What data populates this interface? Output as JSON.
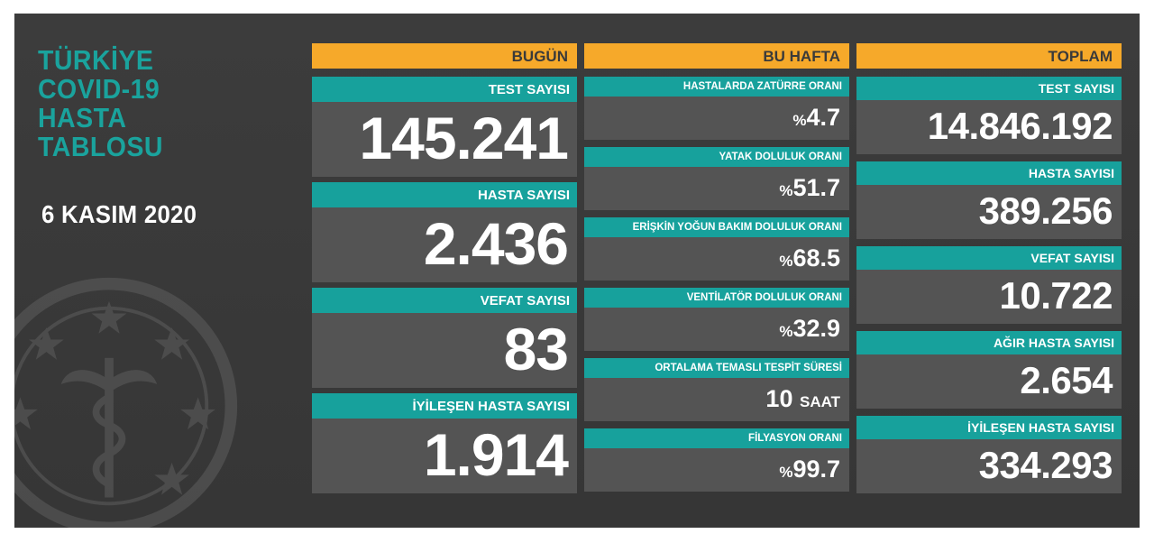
{
  "left": {
    "title_lines": [
      "TÜRKİYE",
      "COVID-19",
      "HASTA",
      "TABLOSU"
    ],
    "date": "6 KASIM 2020"
  },
  "today": {
    "header": "BUGÜN",
    "cards": [
      {
        "label": "TEST SAYISI",
        "value": "145.241"
      },
      {
        "label": "HASTA SAYISI",
        "value": "2.436"
      },
      {
        "label": "VEFAT SAYISI",
        "value": "83"
      },
      {
        "label": "İYİLEŞEN HASTA SAYISI",
        "value": "1.914"
      }
    ]
  },
  "week": {
    "header": "BU HAFTA",
    "cards": [
      {
        "label": "HASTALARDA ZATÜRRE ORANI",
        "prefix": "%",
        "value": "4.7",
        "unit": ""
      },
      {
        "label": "YATAK DOLULUK ORANI",
        "prefix": "%",
        "value": "51.7",
        "unit": ""
      },
      {
        "label": "ERİŞKİN YOĞUN BAKIM DOLULUK ORANI",
        "prefix": "%",
        "value": "68.5",
        "unit": ""
      },
      {
        "label": "VENTİLATÖR DOLULUK ORANI",
        "prefix": "%",
        "value": "32.9",
        "unit": ""
      },
      {
        "label": "ORTALAMA TEMASLI TESPİT SÜRESİ",
        "prefix": "",
        "value": "10",
        "unit": "SAAT"
      },
      {
        "label": "FİLYASYON ORANI",
        "prefix": "%",
        "value": "99.7",
        "unit": ""
      }
    ]
  },
  "total": {
    "header": "TOPLAM",
    "cards": [
      {
        "label": "TEST SAYISI",
        "value": "14.846.192"
      },
      {
        "label": "HASTA SAYISI",
        "value": "389.256"
      },
      {
        "label": "VEFAT SAYISI",
        "value": "10.722"
      },
      {
        "label": "AĞIR HASTA SAYISI",
        "value": "2.654"
      },
      {
        "label": "İYİLEŞEN HASTA SAYISI",
        "value": "334.293"
      }
    ]
  },
  "colors": {
    "background": "#3a3a3a",
    "card": "#545454",
    "teal": "#17a19c",
    "orange": "#f6a92a",
    "text": "#ffffff"
  },
  "icons": {
    "emblem": "ministry-of-health-emblem-icon"
  }
}
